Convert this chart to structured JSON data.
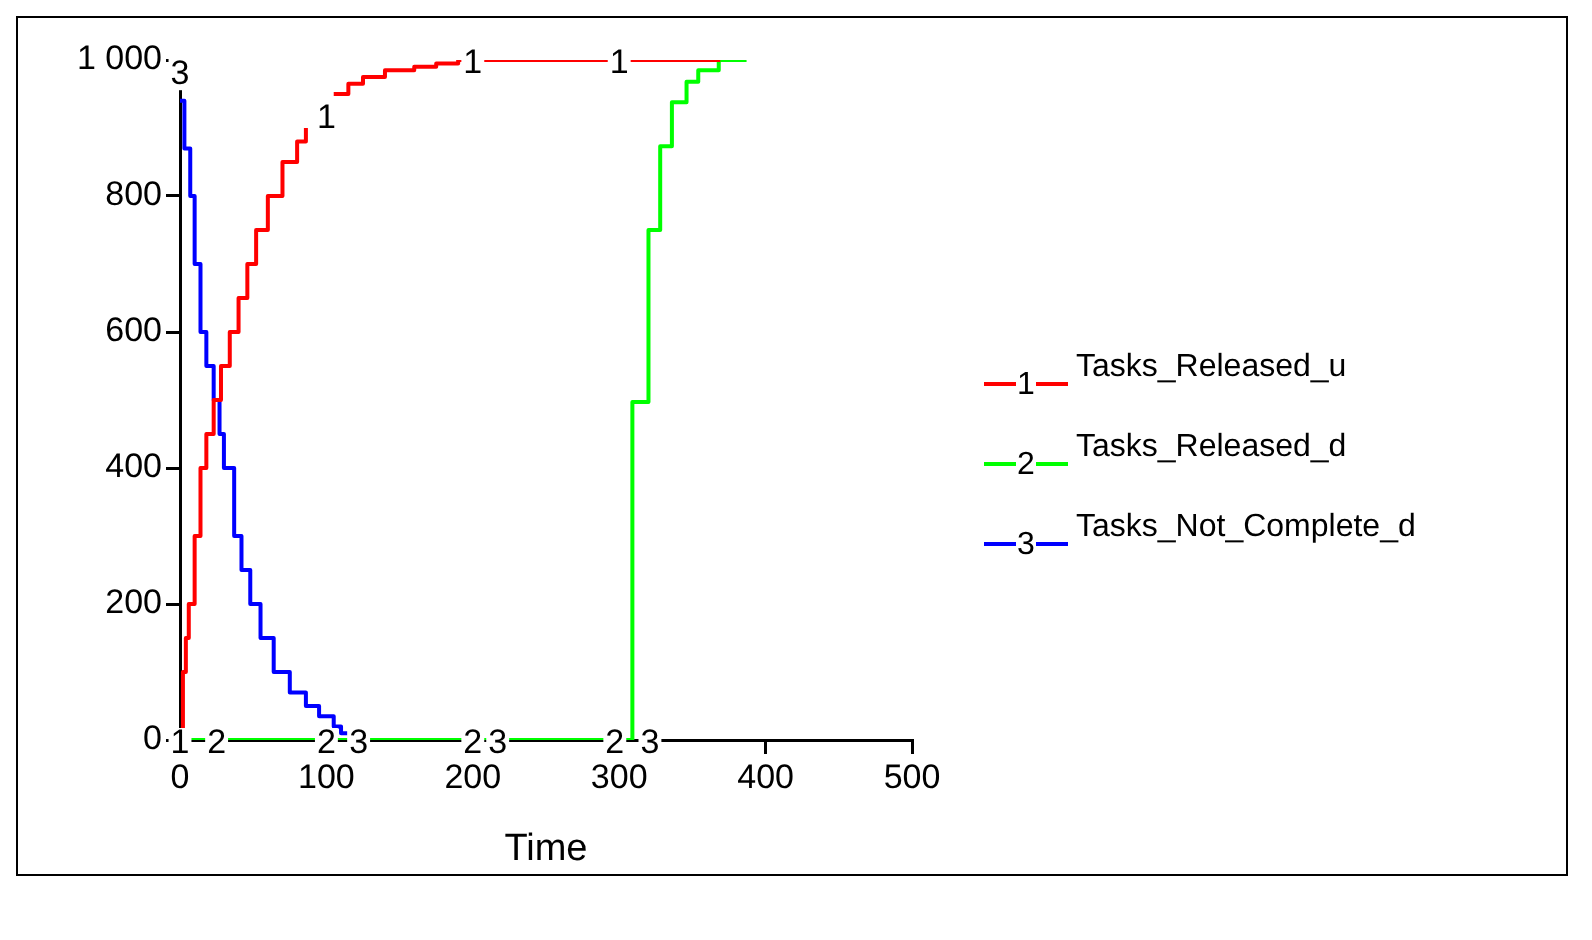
{
  "chart_data": {
    "type": "line",
    "xlabel": "Time",
    "xlim": [
      0,
      500
    ],
    "xticks": [
      0,
      100,
      200,
      300,
      400,
      500
    ],
    "ylim": [
      0,
      1000
    ],
    "yticks": [
      0,
      200,
      400,
      600,
      {
        "value": 800,
        "label": "800"
      },
      {
        "value": 1000,
        "label": "1 000"
      }
    ],
    "grid": false,
    "legend": "right",
    "line_style": "solid",
    "marker": "none",
    "series": [
      {
        "name": "Tasks_Released_u",
        "color": "#ff0000",
        "type": "step",
        "x": [
          0,
          2,
          4,
          6,
          10,
          14,
          18,
          23,
          28,
          34,
          40,
          46,
          52,
          60,
          70,
          80,
          86,
          95,
          105,
          115,
          125,
          140,
          160,
          175,
          190,
          250,
          369
        ],
        "values": [
          0,
          100,
          150,
          200,
          300,
          400,
          450,
          500,
          550,
          600,
          650,
          700,
          750,
          800,
          850,
          880,
          900,
          null,
          950,
          965,
          975,
          985,
          990,
          995,
          1000,
          1000,
          1000
        ]
      },
      {
        "name": "Tasks_Released_d",
        "color": "#00ff00",
        "type": "step",
        "x": [
          0,
          308,
          309,
          320,
          328,
          336,
          346,
          354,
          368,
          387
        ],
        "values": [
          0,
          0,
          497,
          750,
          873,
          938,
          968,
          985,
          1000,
          1000
        ]
      },
      {
        "name": "Tasks_Not_Complete_d",
        "color": "#0000ff",
        "type": "step",
        "x": [
          0,
          3,
          7,
          10,
          14,
          18,
          23,
          27,
          30,
          37,
          42,
          48,
          55,
          64,
          75,
          86,
          95,
          105,
          110,
          116,
          122,
          129,
          150
        ],
        "values": [
          940,
          870,
          800,
          700,
          600,
          550,
          500,
          450,
          400,
          300,
          250,
          200,
          150,
          100,
          70,
          50,
          35,
          20,
          10,
          5,
          null,
          0,
          0
        ]
      }
    ],
    "annotations": [
      {
        "text": "1",
        "x": 0,
        "y": 0
      },
      {
        "text": "1",
        "x": 100,
        "y": 920
      },
      {
        "text": "1",
        "x": 200,
        "y": 1000
      },
      {
        "text": "1",
        "x": 300,
        "y": 1000
      },
      {
        "text": "2",
        "x": 25,
        "y": 0
      },
      {
        "text": "2",
        "x": 100,
        "y": 0
      },
      {
        "text": "2",
        "x": 200,
        "y": 0
      },
      {
        "text": "2",
        "x": 297,
        "y": 0
      },
      {
        "text": "3",
        "x": 0,
        "y": 985
      },
      {
        "text": "3",
        "x": 122,
        "y": 0
      },
      {
        "text": "3",
        "x": 217,
        "y": 0
      },
      {
        "text": "3",
        "x": 321,
        "y": 0
      }
    ]
  }
}
